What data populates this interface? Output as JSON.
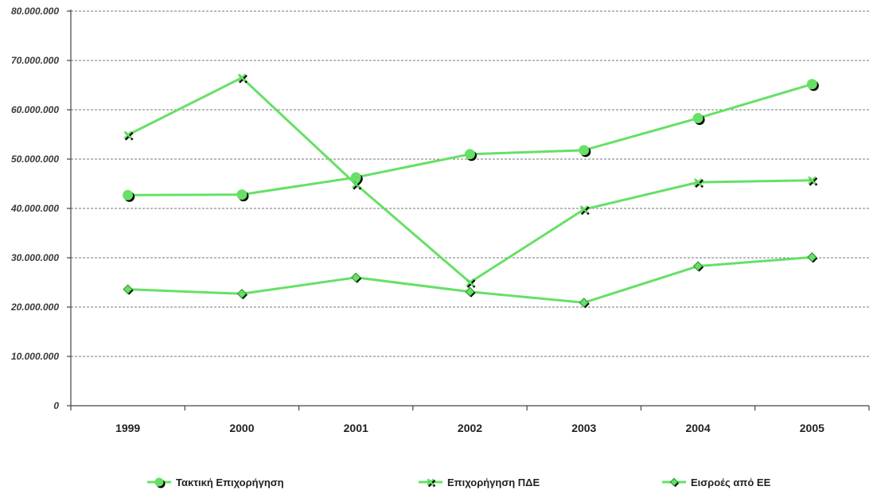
{
  "chart_data": {
    "type": "line",
    "categories": [
      "1999",
      "2000",
      "2001",
      "2002",
      "2003",
      "2004",
      "2005"
    ],
    "ylim": [
      0,
      80000000
    ],
    "y_ticks": [
      {
        "value": 0,
        "label": "0"
      },
      {
        "value": 10000000,
        "label": "10.000.000"
      },
      {
        "value": 20000000,
        "label": "20.000.000"
      },
      {
        "value": 30000000,
        "label": "30.000.000"
      },
      {
        "value": 40000000,
        "label": "40.000.000"
      },
      {
        "value": 50000000,
        "label": "50.000.000"
      },
      {
        "value": 60000000,
        "label": "60.000.000"
      },
      {
        "value": 70000000,
        "label": "70.000.000"
      },
      {
        "value": 80000000,
        "label": "80.000.000"
      }
    ],
    "grid": true,
    "legend_position": "bottom",
    "series": [
      {
        "name": "Τακτική Επιχορήγηση",
        "marker": "circle",
        "color": "#66e066",
        "values": [
          42700000,
          42800000,
          46300000,
          51000000,
          51800000,
          58300000,
          65200000
        ]
      },
      {
        "name": "Επιχορήγηση ΠΔΕ",
        "marker": "x",
        "color": "#66e066",
        "values": [
          54900000,
          66500000,
          44900000,
          25000000,
          39800000,
          45300000,
          45700000
        ]
      },
      {
        "name": "Εισροές από ΕΕ",
        "marker": "diamond",
        "color": "#66e066",
        "values": [
          23600000,
          22700000,
          26000000,
          23100000,
          20900000,
          28300000,
          30100000
        ]
      }
    ]
  }
}
